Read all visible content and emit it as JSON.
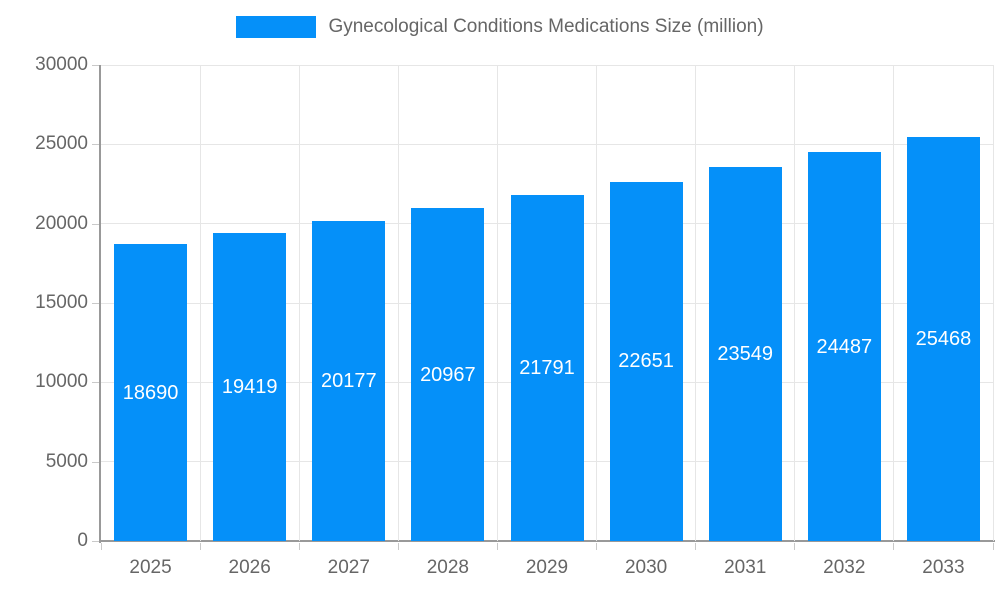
{
  "chart_data": {
    "type": "bar",
    "title": "Gynecological Conditions Medications Size (million)",
    "categories": [
      "2025",
      "2026",
      "2027",
      "2028",
      "2029",
      "2030",
      "2031",
      "2032",
      "2033"
    ],
    "values": [
      18690,
      19419,
      20177,
      20967,
      21791,
      22651,
      23549,
      24487,
      25468
    ],
    "ytick_labels": [
      "0",
      "5000",
      "10000",
      "15000",
      "20000",
      "25000",
      "30000"
    ],
    "ylim": [
      0,
      30000
    ],
    "ytick_step": 5000,
    "xlabel": "",
    "ylabel": "",
    "grid": true,
    "legend_position": "top",
    "colors": {
      "bar": "#0590f9",
      "bar_value_label": "#ffffff",
      "axis_text": "#666666",
      "grid_line": "#e6e6e6",
      "axis_line": "#999999"
    }
  }
}
